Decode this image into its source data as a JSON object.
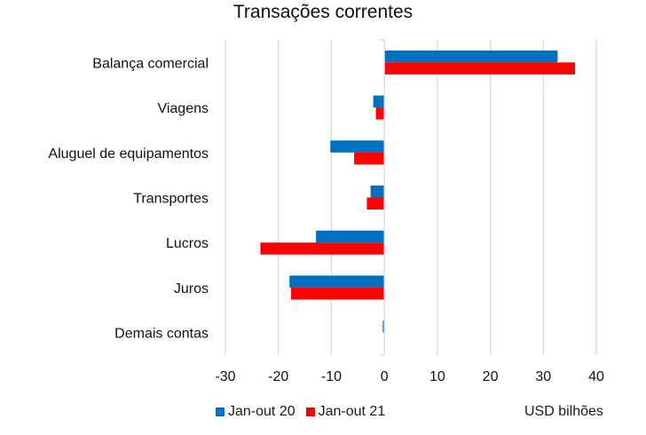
{
  "chart_data": {
    "type": "bar",
    "orientation": "horizontal",
    "title": "Transações correntes",
    "xlabel": "USD bilhões",
    "ylabel": "",
    "categories": [
      "Balança comercial",
      "Viagens",
      "Aluguel de equipamentos",
      "Transportes",
      "Lucros",
      "Juros",
      "Demais contas"
    ],
    "series": [
      {
        "name": "Jan-out 20",
        "color": "#0070C0",
        "values": [
          32.7,
          -2.1,
          -10.2,
          -2.6,
          -12.9,
          -17.9,
          -0.3
        ]
      },
      {
        "name": "Jan-out 21",
        "color": "#FF0000",
        "values": [
          36.0,
          -1.6,
          -5.7,
          -3.3,
          -23.4,
          -17.6,
          -0.1
        ]
      }
    ],
    "xlim": [
      -30,
      40
    ],
    "xticks": [
      -30,
      -20,
      -10,
      0,
      10,
      20,
      30,
      40
    ],
    "xtick_labels": [
      "-30",
      "-20",
      "-10",
      "0",
      "10",
      "20",
      "30",
      "40"
    ],
    "grid": true,
    "legend_position": "bottom-left"
  }
}
